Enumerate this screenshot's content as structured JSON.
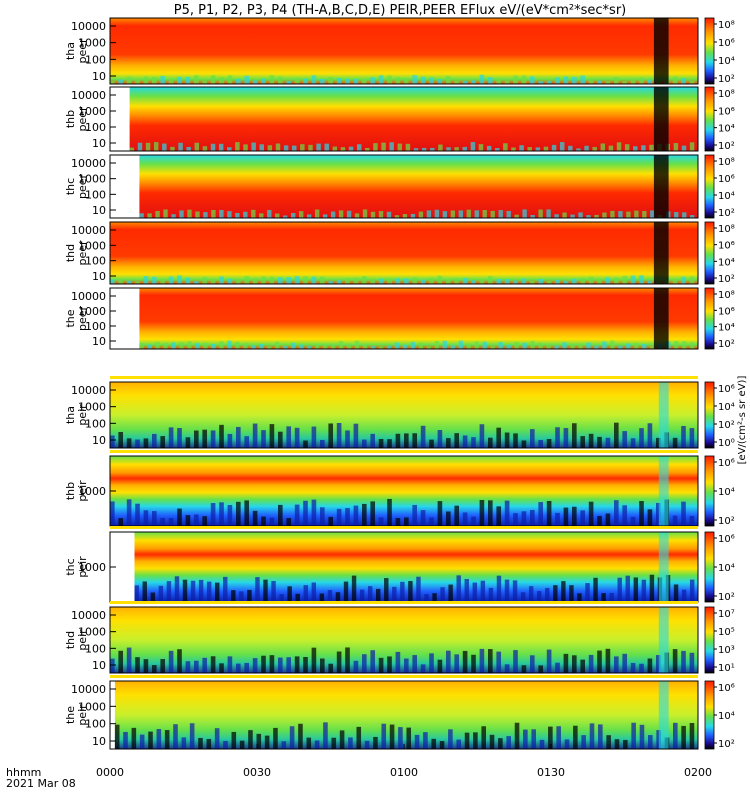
{
  "title": "P5, P1, P2, P3, P4 (TH-A,B,C,D,E) PEIR,PEER EFlux eV/(eV*cm²*sec*sr)",
  "colorbar_unit": "[eV/(cm²-s sr eV)]",
  "colors": {
    "black": "#000000",
    "navy": "#0b1ea8",
    "blue": "#1f5fff",
    "cyan": "#27d8e8",
    "green": "#66e04a",
    "lime": "#c8f02c",
    "yellow": "#ffe000",
    "orange": "#ff9a00",
    "red": "#ff2a00",
    "deep_red": "#e01010"
  },
  "chart_data": {
    "type": "heatmap",
    "x_axis": {
      "label": "hhmm",
      "date": "2021 Mar 08",
      "ticks": [
        "0000",
        "0030",
        "0100",
        "0130",
        "0200"
      ],
      "range_minutes": [
        0,
        120
      ]
    },
    "y_scale": "log",
    "colorbar_scale": "log",
    "panels": [
      {
        "label": "tha\npeer",
        "instrument": "PEER",
        "probe": "P5",
        "yticks": [
          "10000",
          "1000",
          "100",
          "10"
        ],
        "colorbar_ticks": [
          "10⁸",
          "10⁶",
          "10⁴",
          "10²"
        ],
        "data_start_minute": 0,
        "dominant_band": "red"
      },
      {
        "label": "thb\npeer",
        "instrument": "PEER",
        "probe": "P1",
        "yticks": [
          "10000",
          "1000",
          "100",
          "10"
        ],
        "colorbar_ticks": [
          "10⁸",
          "10⁶",
          "10⁴",
          "10²"
        ],
        "data_start_minute": 4,
        "dominant_band": "red"
      },
      {
        "label": "thc\npeer",
        "instrument": "PEER",
        "probe": "P2",
        "yticks": [
          "10000",
          "1000",
          "100",
          "10"
        ],
        "colorbar_ticks": [
          "10⁸",
          "10⁶",
          "10⁴",
          "10²"
        ],
        "data_start_minute": 6,
        "dominant_band": "red"
      },
      {
        "label": "thd\npeer",
        "instrument": "PEER",
        "probe": "P3",
        "yticks": [
          "10000",
          "1000",
          "100",
          "10"
        ],
        "colorbar_ticks": [
          "10⁸",
          "10⁶",
          "10⁴",
          "10²"
        ],
        "data_start_minute": 0,
        "dominant_band": "red"
      },
      {
        "label": "the\npeer",
        "instrument": "PEER",
        "probe": "P4",
        "yticks": [
          "10000",
          "1000",
          "100",
          "10"
        ],
        "colorbar_ticks": [
          "10⁸",
          "10⁶",
          "10⁴",
          "10²"
        ],
        "data_start_minute": 6,
        "dominant_band": "red"
      },
      {
        "label": "tha\npeir",
        "instrument": "PEIR",
        "probe": "P5",
        "yticks": [
          "10000",
          "1000",
          "100",
          "10"
        ],
        "colorbar_ticks": [
          "10⁶",
          "10⁴",
          "10²",
          "10⁰"
        ],
        "data_start_minute": 0,
        "dominant_band": "yellow"
      },
      {
        "label": "thb\npeir",
        "instrument": "PEIR",
        "probe": "P1",
        "yticks": [
          "1000"
        ],
        "colorbar_ticks": [
          "10⁶",
          "10⁴",
          "10²"
        ],
        "data_start_minute": 0,
        "dominant_band": "orange"
      },
      {
        "label": "thc\npeir",
        "instrument": "PEIR",
        "probe": "P2",
        "yticks": [
          "1000"
        ],
        "colorbar_ticks": [
          "10⁶",
          "10⁴",
          "10²"
        ],
        "data_start_minute": 5,
        "dominant_band": "orange"
      },
      {
        "label": "thd\npeir",
        "instrument": "PEIR",
        "probe": "P3",
        "yticks": [
          "10000",
          "1000",
          "100",
          "10"
        ],
        "colorbar_ticks": [
          "10⁷",
          "10⁵",
          "10³",
          "10¹"
        ],
        "data_start_minute": 0,
        "dominant_band": "yellow"
      },
      {
        "label": "the\npeir",
        "instrument": "PEIR",
        "probe": "P4",
        "yticks": [
          "10000",
          "1000",
          "100",
          "10"
        ],
        "colorbar_ticks": [
          "10⁶",
          "10⁴",
          "10²"
        ],
        "data_start_minute": 1,
        "dominant_band": "yellow"
      }
    ]
  }
}
